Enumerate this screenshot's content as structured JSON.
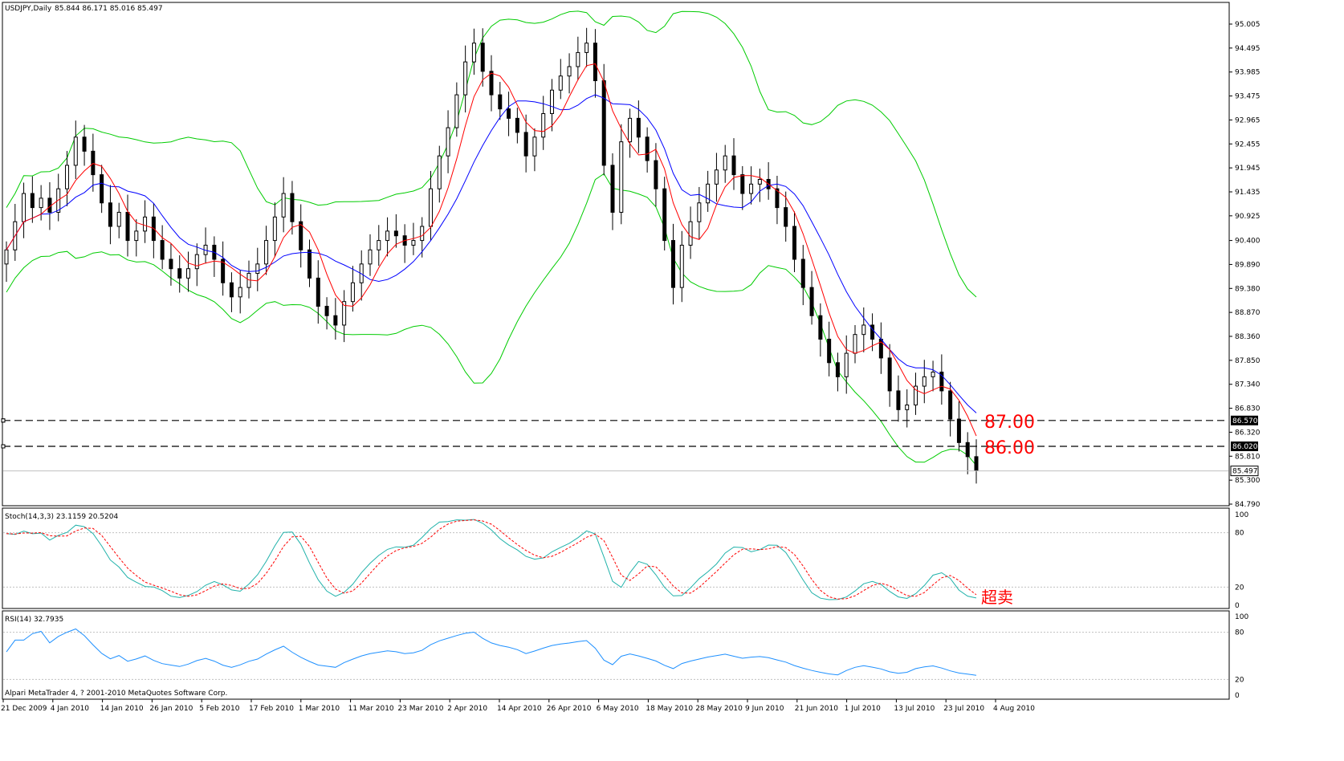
{
  "main": {
    "symbol": "USDJPY,Daily",
    "ohlc": "85.844 86.171 85.016 85.497",
    "price_ticks": [
      "95.005",
      "94.495",
      "93.985",
      "93.475",
      "92.965",
      "92.455",
      "91.945",
      "91.435",
      "90.925",
      "90.400",
      "89.890",
      "89.380",
      "88.870",
      "88.360",
      "87.850",
      "87.340",
      "86.830",
      "86.320",
      "85.810",
      "85.300",
      "84.790"
    ],
    "price_range": [
      84.79,
      95.005
    ],
    "levels": [
      {
        "value": 86.57,
        "tag": "86.570",
        "label": "87.00"
      },
      {
        "value": 86.02,
        "tag": "86.020",
        "label": "86.00"
      }
    ],
    "current_price": {
      "value": 85.497,
      "tag": "85.497"
    }
  },
  "stoch": {
    "header": "Stoch(14,3,3) 23.1159 20.5204",
    "ticks": [
      "100",
      "80",
      "20",
      "0"
    ],
    "annotation": "超卖"
  },
  "rsi": {
    "header": "RSI(14) 32.7935",
    "ticks": [
      "100",
      "80",
      "20",
      "0"
    ]
  },
  "copyright": "Alpari MetaTrader 4, ? 2001-2010 MetaQuotes Software Corp.",
  "dates": [
    "21 Dec 2009",
    "4 Jan 2010",
    "14 Jan 2010",
    "26 Jan 2010",
    "5 Feb 2010",
    "17 Feb 2010",
    "1 Mar 2010",
    "11 Mar 2010",
    "23 Mar 2010",
    "2 Apr 2010",
    "14 Apr 2010",
    "26 Apr 2010",
    "6 May 2010",
    "18 May 2010",
    "28 May 2010",
    "9 Jun 2010",
    "21 Jun 2010",
    "1 Jul 2010",
    "13 Jul 2010",
    "23 Jul 2010",
    "4 Aug 2010"
  ],
  "colors": {
    "bollinger": "#00cc00",
    "ma_fast": "#ff0000",
    "ma_slow": "#0000ff",
    "stoch_main": "#20b2aa",
    "stoch_signal": "#ff0000",
    "rsi": "#1e90ff",
    "annotation": "#ff0000"
  },
  "chart_data": {
    "type": "candlestick",
    "title": "USDJPY,Daily",
    "x_range": [
      "21 Dec 2009",
      "6 Aug 2010"
    ],
    "ylim": [
      84.79,
      95.005
    ],
    "closes": [
      90.2,
      90.8,
      91.4,
      91.1,
      91.3,
      91.0,
      91.5,
      92.0,
      92.6,
      92.3,
      91.8,
      91.2,
      90.7,
      91.0,
      90.4,
      90.6,
      90.9,
      90.4,
      90.0,
      89.8,
      89.6,
      89.8,
      90.1,
      90.3,
      90.0,
      89.5,
      89.2,
      89.4,
      89.7,
      89.9,
      90.4,
      90.9,
      91.4,
      90.8,
      90.2,
      89.6,
      89.0,
      88.8,
      88.6,
      89.1,
      89.5,
      89.9,
      90.2,
      90.4,
      90.6,
      90.5,
      90.3,
      90.4,
      90.7,
      91.5,
      92.2,
      92.8,
      93.5,
      94.2,
      94.6,
      94.0,
      93.5,
      93.2,
      93.0,
      92.7,
      92.2,
      92.6,
      93.1,
      93.6,
      93.9,
      94.1,
      94.4,
      94.6,
      93.8,
      92.0,
      91.0,
      92.5,
      93.0,
      92.6,
      92.1,
      91.5,
      90.4,
      89.4,
      90.3,
      90.8,
      91.2,
      91.6,
      91.9,
      92.2,
      91.8,
      91.4,
      91.6,
      91.7,
      91.5,
      91.1,
      90.7,
      90.0,
      89.4,
      88.8,
      88.3,
      87.8,
      87.5,
      88.0,
      88.4,
      88.6,
      88.3,
      87.9,
      87.2,
      86.8,
      86.9,
      87.3,
      87.5,
      87.6,
      87.2,
      86.6,
      86.1,
      85.8,
      85.5
    ],
    "series": [
      {
        "name": "Bollinger Bands"
      },
      {
        "name": "MA fast"
      },
      {
        "name": "MA slow"
      },
      {
        "name": "Stoch(14,3,3)",
        "last": [
          23.1159,
          20.5204
        ],
        "ylim": [
          0,
          100
        ]
      },
      {
        "name": "RSI(14)",
        "last": 32.7935,
        "ylim": [
          0,
          100
        ]
      }
    ]
  }
}
